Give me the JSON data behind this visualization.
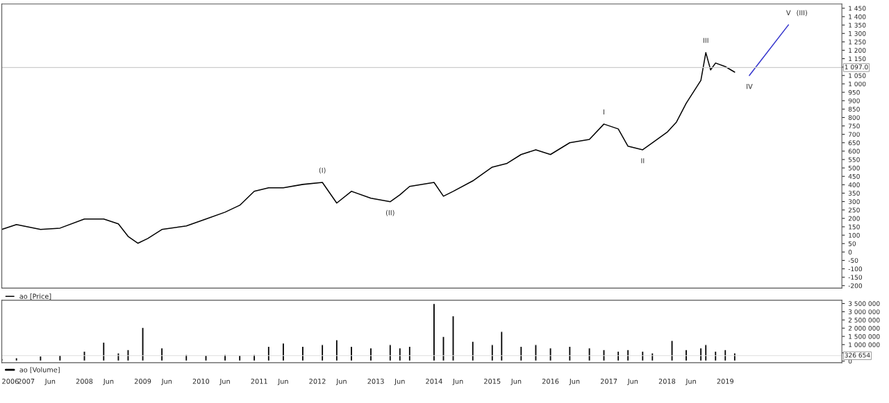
{
  "chart_data": [
    {
      "type": "line",
      "xlim": [
        "2006-08",
        "2021-01"
      ],
      "ylim": [
        -215,
        1475
      ],
      "yticks": [
        -200,
        -150,
        -100,
        -50,
        0,
        50,
        100,
        150,
        200,
        250,
        300,
        350,
        400,
        450,
        500,
        550,
        600,
        650,
        700,
        750,
        800,
        850,
        900,
        950,
        {
          "value": 1000,
          "label": "1 000"
        },
        {
          "value": 1050,
          "label": "1 050"
        },
        {
          "value": 1100,
          "label": null
        },
        {
          "value": 1150,
          "label": "1 150"
        },
        {
          "value": 1200,
          "label": "1 200"
        },
        {
          "value": 1250,
          "label": "1 250"
        },
        {
          "value": 1300,
          "label": "1 300"
        },
        {
          "value": 1350,
          "label": "1 350"
        },
        {
          "value": 1400,
          "label": "1 400"
        },
        {
          "value": 1450,
          "label": "1 450"
        }
      ],
      "tick_labels": "y",
      "grid": false,
      "legend": "bottom",
      "series": [
        {
          "name": "ао [Price]",
          "color": "#000000",
          "x": [
            "2006-08",
            "2006-11",
            "2007-04",
            "2007-08",
            "2008-01",
            "2008-05",
            "2008-08",
            "2008-10",
            "2008-12",
            "2009-02",
            "2009-05",
            "2009-10",
            "2010-02",
            "2010-06",
            "2010-09",
            "2010-12",
            "2011-03",
            "2011-06",
            "2011-10",
            "2012-02",
            "2012-05",
            "2012-08",
            "2012-12",
            "2013-04",
            "2013-06",
            "2013-08",
            "2014-01",
            "2014-03",
            "2014-05",
            "2014-09",
            "2015-01",
            "2015-04",
            "2015-07",
            "2015-10",
            "2016-01",
            "2016-05",
            "2016-09",
            "2016-12",
            "2017-03",
            "2017-05",
            "2017-08",
            "2017-10",
            "2018-01",
            "2018-03",
            "2018-05",
            "2018-08",
            "2018-09",
            "2018-10",
            "2018-11",
            "2019-01",
            "2019-03"
          ],
          "values": [
            134,
            163,
            134,
            142,
            196,
            196,
            167,
            93,
            52,
            80,
            134,
            155,
            196,
            237,
            278,
            361,
            382,
            382,
            402,
            414,
            291,
            361,
            320,
            299,
            340,
            390,
            414,
            332,
            361,
            423,
            505,
            526,
            580,
            608,
            580,
            650,
            670,
            761,
            732,
            629,
            608,
            650,
            712,
            773,
            885,
            1021,
            1186,
            1083,
            1124,
            1103,
            1070
          ]
        },
        {
          "type": "line",
          "color": "#3333cc",
          "x": [
            "2019-06",
            "2020-02"
          ],
          "values": [
            1050,
            1351
          ]
        }
      ],
      "ref_lines": [
        {
          "axis": "y",
          "value": 1097,
          "label": "1 097.0",
          "color": "#cccccc"
        }
      ],
      "annotations": [
        {
          "text": "(I)",
          "x": "2012-02",
          "y": 414
        },
        {
          "text": "(II)",
          "x": "2013-04",
          "y": 299
        },
        {
          "text": "I",
          "x": "2016-12",
          "y": 761
        },
        {
          "text": "II",
          "x": "2017-08",
          "y": 608
        },
        {
          "text": "III",
          "x": "2018-09",
          "y": 1186
        },
        {
          "text": "IV",
          "x": "2019-06",
          "y": 1050
        },
        {
          "text": "V",
          "x": "2020-02",
          "y": 1351
        },
        {
          "text": "(III)",
          "x": "2020-02",
          "y": 1351
        }
      ]
    },
    {
      "type": "bar",
      "xlim": [
        "2006-08",
        "2021-01"
      ],
      "ylim": [
        -100000,
        3700000
      ],
      "yticks": [
        0,
        {
          "value": 500000,
          "label": null
        },
        {
          "value": 1000000,
          "label": "1 000 000"
        },
        {
          "value": 1500000,
          "label": "1 500 000"
        },
        {
          "value": 2000000,
          "label": "2 000 000"
        },
        {
          "value": 2500000,
          "label": "2 500 000"
        },
        {
          "value": 3000000,
          "label": "3 000 000"
        },
        {
          "value": 3500000,
          "label": "3 500 000"
        }
      ],
      "xticks": [
        {
          "value": "2006-08",
          "label": "2006"
        },
        {
          "value": "2007-01",
          "label": "2007"
        },
        {
          "value": "2007-06",
          "label": "Jun"
        },
        {
          "value": "2008-01",
          "label": "2008"
        },
        {
          "value": "2008-06",
          "label": "Jun"
        },
        {
          "value": "2009-01",
          "label": "2009"
        },
        {
          "value": "2009-06",
          "label": "Jun"
        },
        {
          "value": "2010-01",
          "label": "2010"
        },
        {
          "value": "2010-06",
          "label": "Jun"
        },
        {
          "value": "2011-01",
          "label": "2011"
        },
        {
          "value": "2011-06",
          "label": "Jun"
        },
        {
          "value": "2012-01",
          "label": "2012"
        },
        {
          "value": "2012-06",
          "label": "Jun"
        },
        {
          "value": "2013-01",
          "label": "2013"
        },
        {
          "value": "2013-06",
          "label": "Jun"
        },
        {
          "value": "2014-01",
          "label": "2014"
        },
        {
          "value": "2014-06",
          "label": "Jun"
        },
        {
          "value": "2015-01",
          "label": "2015"
        },
        {
          "value": "2015-06",
          "label": "Jun"
        },
        {
          "value": "2016-01",
          "label": "2016"
        },
        {
          "value": "2016-06",
          "label": "Jun"
        },
        {
          "value": "2017-01",
          "label": "2017"
        },
        {
          "value": "2017-06",
          "label": "Jun"
        },
        {
          "value": "2018-01",
          "label": "2018"
        },
        {
          "value": "2018-06",
          "label": "Jun"
        },
        {
          "value": "2019-01",
          "label": "2019"
        }
      ],
      "grid": false,
      "legend": "bottom",
      "series": [
        {
          "name": "ао [Volume]",
          "color": "#000000",
          "x": [
            "2006-08",
            "2006-11",
            "2007-04",
            "2007-08",
            "2008-01",
            "2008-05",
            "2008-08",
            "2008-10",
            "2009-01",
            "2009-05",
            "2009-10",
            "2010-02",
            "2010-06",
            "2010-09",
            "2010-12",
            "2011-03",
            "2011-06",
            "2011-10",
            "2012-02",
            "2012-05",
            "2012-08",
            "2012-12",
            "2013-04",
            "2013-06",
            "2013-08",
            "2014-01",
            "2014-03",
            "2014-05",
            "2014-09",
            "2015-01",
            "2015-03",
            "2015-07",
            "2015-10",
            "2016-01",
            "2016-05",
            "2016-09",
            "2016-12",
            "2017-03",
            "2017-05",
            "2017-08",
            "2017-10",
            "2018-02",
            "2018-05",
            "2018-08",
            "2018-09",
            "2018-11",
            "2019-01",
            "2019-03"
          ],
          "values": [
            150000,
            200000,
            300000,
            350000,
            600000,
            1150000,
            500000,
            700000,
            2050000,
            800000,
            400000,
            350000,
            400000,
            350000,
            400000,
            900000,
            1100000,
            900000,
            1000000,
            1300000,
            900000,
            800000,
            1000000,
            800000,
            900000,
            3500000,
            1500000,
            2750000,
            1200000,
            1000000,
            1800000,
            900000,
            1000000,
            800000,
            900000,
            800000,
            700000,
            600000,
            700000,
            600000,
            500000,
            1250000,
            700000,
            800000,
            1000000,
            600000,
            700000,
            500000
          ]
        }
      ],
      "ref_lines": [
        {
          "axis": "y",
          "value": 326654,
          "label": "326 654",
          "color": "#dddddd"
        }
      ]
    }
  ]
}
